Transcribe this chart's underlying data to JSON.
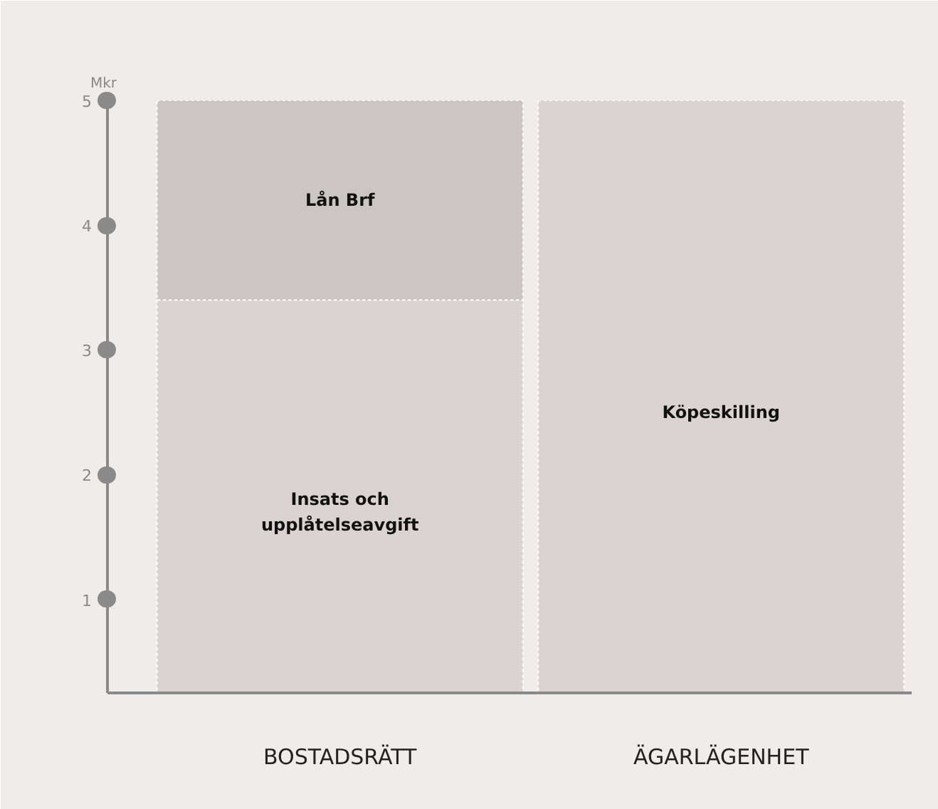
{
  "chart_data": {
    "type": "bar",
    "stacked": true,
    "ylabel": "Mkr",
    "categories": [
      "BOSTADSRÄTT",
      "ÄGARLÄGENHET"
    ],
    "series": [
      {
        "name": "Insats och upplåtelseavgift",
        "color": "#dad2d3",
        "values": [
          3.4,
          null
        ]
      },
      {
        "name": "Lån Brf",
        "color": "#cbc5c5",
        "values": [
          1.6,
          null
        ]
      },
      {
        "name": "Köpeskilling",
        "color": "#dad2d3",
        "values": [
          null,
          5
        ]
      }
    ],
    "ylim": [
      0.25,
      5
    ],
    "yticks": [
      1,
      2,
      3,
      4,
      5
    ],
    "grid": false
  }
}
